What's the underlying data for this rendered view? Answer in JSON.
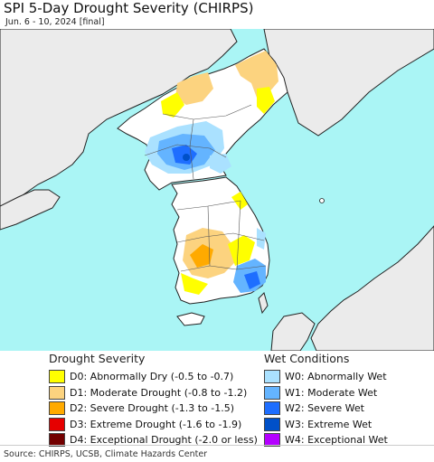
{
  "header": {
    "title": "SPI 5-Day Drought Severity (CHIRPS)",
    "subtitle": "Jun. 6 - 10, 2024 [final]"
  },
  "map": {
    "colors": {
      "water": "#aaf5f5",
      "land": "#ffffff",
      "neighbor_land": "#ebebeb",
      "border": "#222222"
    }
  },
  "legend": {
    "drought": {
      "title": "Drought Severity",
      "items": [
        {
          "label": "D0: Abnormally Dry (-0.5 to -0.7)",
          "color": "#ffff00"
        },
        {
          "label": "D1: Moderate Drought (-0.8 to -1.2)",
          "color": "#fcd37f"
        },
        {
          "label": "D2: Severe Drought (-1.3 to -1.5)",
          "color": "#ffaa00"
        },
        {
          "label": "D3: Extreme Drought (-1.6 to -1.9)",
          "color": "#e60000"
        },
        {
          "label": "D4: Exceptional Drought (-2.0 or less)",
          "color": "#730000"
        }
      ]
    },
    "wet": {
      "title": "Wet Conditions",
      "items": [
        {
          "label": "W0: Abnormally Wet",
          "color": "#aae1ff"
        },
        {
          "label": "W1: Moderate Wet",
          "color": "#64b4ff"
        },
        {
          "label": "W2: Severe Wet",
          "color": "#1e6eff"
        },
        {
          "label": "W3: Extreme Wet",
          "color": "#0050c8"
        },
        {
          "label": "W4: Exceptional Wet",
          "color": "#b400ff"
        }
      ]
    }
  },
  "footer": {
    "source": "Source: CHIRPS, UCSB, Climate Hazards Center"
  }
}
